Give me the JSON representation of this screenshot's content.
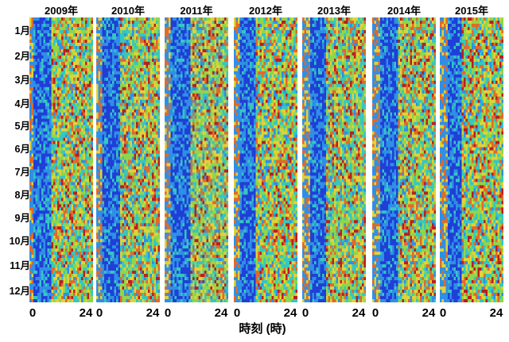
{
  "chart_data": {
    "type": "heatmap",
    "panels": [
      {
        "year_label": "2009年"
      },
      {
        "year_label": "2010年"
      },
      {
        "year_label": "2011年"
      },
      {
        "year_label": "2012年"
      },
      {
        "year_label": "2013年"
      },
      {
        "year_label": "2014年"
      },
      {
        "year_label": "2015年"
      }
    ],
    "y_categories": [
      "1月",
      "2月",
      "3月",
      "4月",
      "5月",
      "6月",
      "7月",
      "8月",
      "9月",
      "10月",
      "11月",
      "12月"
    ],
    "x_ticks": [
      "0",
      "24"
    ],
    "xlabel": "時刻 (時)",
    "xlim": [
      0,
      24
    ],
    "colorscale": [
      "#1f3fd6",
      "#2f8fe6",
      "#35c7c0",
      "#8fd64a",
      "#e0d23a",
      "#e06a2a",
      "#b81f1f"
    ]
  }
}
